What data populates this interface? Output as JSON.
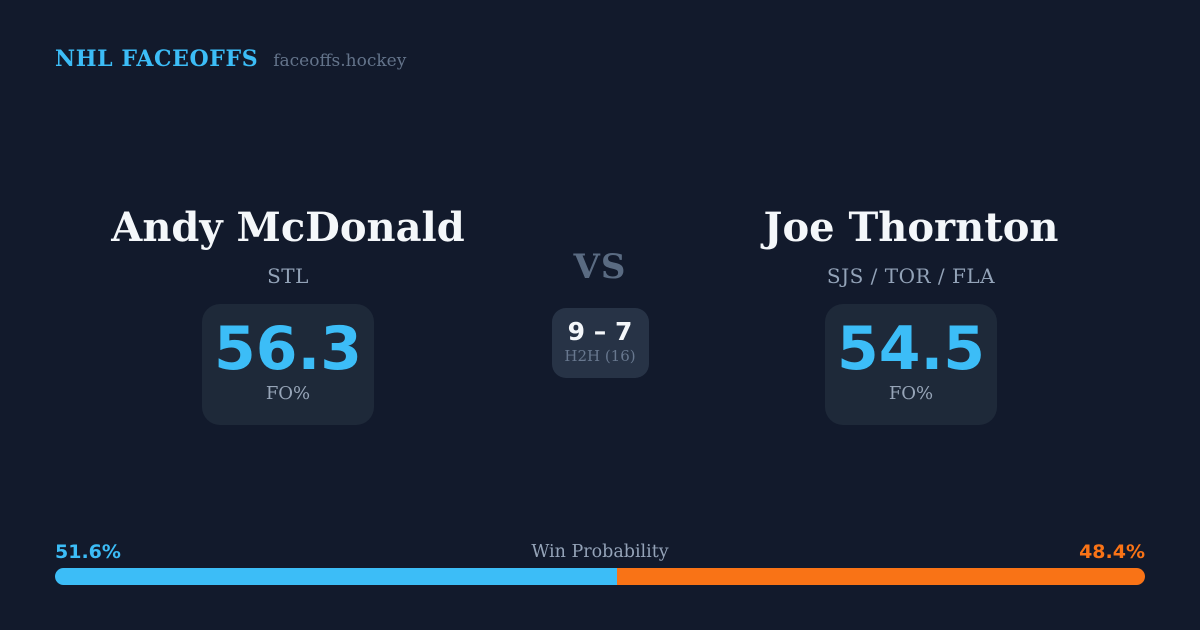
{
  "header": {
    "brand": "NHL FACEOFFS",
    "domain": "faceoffs.hockey"
  },
  "player_left": {
    "name": "Andy McDonald",
    "team": "STL",
    "stat_value": "56.3",
    "stat_label": "FO%"
  },
  "matchup": {
    "vs_label": "VS",
    "h2h_record": "9 – 7",
    "h2h_label": "H2H (16)"
  },
  "player_right": {
    "name": "Joe Thornton",
    "team": "SJS / TOR / FLA",
    "stat_value": "54.5",
    "stat_label": "FO%"
  },
  "win_probability": {
    "title": "Win Probability",
    "left_pct_label": "51.6%",
    "right_pct_label": "48.4%",
    "left_value": 51.6,
    "right_value": 48.4
  },
  "colors": {
    "background": "#121A2C",
    "card": "#1E2939",
    "card_h2h": "#273346",
    "accent_blue": "#3CBDF7",
    "accent_orange": "#F97316",
    "text_primary": "#F4F7FA",
    "text_muted": "#93A3B8"
  },
  "chart_data": {
    "type": "bar",
    "subtype": "stacked-horizontal-single",
    "title": "Win Probability",
    "series": [
      {
        "name": "Andy McDonald",
        "values": [
          51.6
        ],
        "color": "#3CBDF7"
      },
      {
        "name": "Joe Thornton",
        "values": [
          48.4
        ],
        "color": "#F97316"
      }
    ],
    "xlim": [
      0,
      100
    ],
    "unit": "%",
    "related_stats": {
      "faceoff_pct": {
        "Andy McDonald": 56.3,
        "Joe Thornton": 54.5
      },
      "head_to_head": {
        "record": "9-7",
        "games": 16
      }
    }
  }
}
